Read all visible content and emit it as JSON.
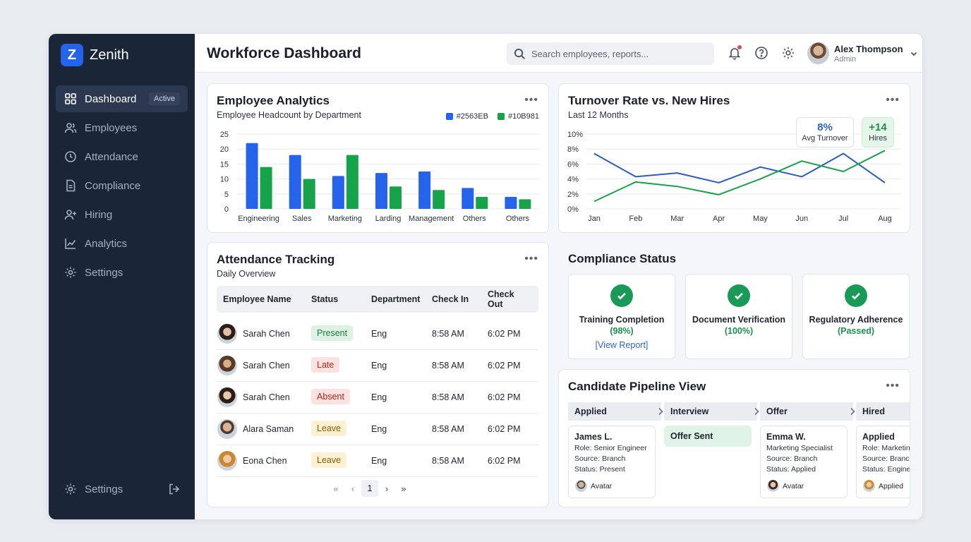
{
  "brand": {
    "name": "Zenith",
    "logo_letter": "Z"
  },
  "sidebar": {
    "items": [
      {
        "label": "Dashboard",
        "icon": "grid-icon",
        "badge": "Active"
      },
      {
        "label": "Employees",
        "icon": "users-icon"
      },
      {
        "label": "Attendance",
        "icon": "clock-icon"
      },
      {
        "label": "Compliance",
        "icon": "document-icon"
      },
      {
        "label": "Hiring",
        "icon": "user-plus-icon"
      },
      {
        "label": "Analytics",
        "icon": "trend-icon"
      },
      {
        "label": "Settings",
        "icon": "gear-icon"
      }
    ],
    "bottom": {
      "label": "Settings"
    }
  },
  "header": {
    "title": "Workforce Dashboard",
    "search_placeholder": "Search employees, reports...",
    "user": {
      "name": "Alex Thompson",
      "role": "Admin"
    }
  },
  "colors": {
    "blue": "#2563EB",
    "green": "#10B981",
    "sidebar": "#1B2538"
  },
  "employee_analytics": {
    "title": "Employee Analytics",
    "subtitle": "Employee Headcount by Department",
    "legend": [
      "#2563EB",
      "#10B981"
    ]
  },
  "turnover": {
    "title": "Turnover Rate vs. New Hires",
    "subtitle": "Last 12 Months",
    "stat_turnover_value": "8%",
    "stat_turnover_label": "Avg Turnover",
    "stat_hires_value": "+14",
    "stat_hires_label": "Hires"
  },
  "chart_data": [
    {
      "type": "bar",
      "title": "Employee Headcount by Department",
      "categories": [
        "Engineering",
        "Sales",
        "Marketing",
        "Larding",
        "Management",
        "Others",
        "Others"
      ],
      "series": [
        {
          "name": "#2563EB",
          "color": "#2563EB",
          "values": [
            22,
            18,
            11,
            12,
            12.5,
            7,
            4
          ]
        },
        {
          "name": "#10B981",
          "color": "#10B981",
          "values": [
            14,
            10,
            18,
            7.5,
            6.3,
            4,
            3.2
          ]
        }
      ],
      "yticks": [
        "0",
        "5",
        "10",
        "15",
        "20",
        "25"
      ],
      "ylim": [
        0,
        25
      ],
      "grid": true
    },
    {
      "type": "line",
      "title": "Turnover Rate vs. New Hires",
      "categories": [
        "Jan",
        "Feb",
        "Mar",
        "Apr",
        "May",
        "Jun",
        "Jul",
        "Aug"
      ],
      "series": [
        {
          "color": "#2563EB",
          "values": [
            7.4,
            4.3,
            4.8,
            3.5,
            5.6,
            4.3,
            7.4,
            3.5
          ]
        },
        {
          "color": "#10B981",
          "values": [
            1.0,
            3.6,
            3.0,
            1.9,
            4.0,
            6.4,
            5.0,
            7.8
          ]
        }
      ],
      "yticks": [
        "0%",
        "2%",
        "4%",
        "6%",
        "8%",
        "10%"
      ],
      "ylim": [
        0,
        10
      ],
      "grid": true
    }
  ],
  "attendance": {
    "title": "Attendance Tracking",
    "subtitle": "Daily Overview",
    "columns": [
      "Employee Name",
      "Status",
      "Department",
      "Check In",
      "Check\nOut"
    ],
    "rows": [
      {
        "name": "Sarah Chen",
        "status": "Present",
        "dept": "Eng",
        "in": "8:58 AM",
        "out": "6:02 PM"
      },
      {
        "name": "Sarah Chen",
        "status": "Late",
        "dept": "Eng",
        "in": "8:58 AM",
        "out": "6:02 PM"
      },
      {
        "name": "Sarah Chen",
        "status": "Absent",
        "dept": "Eng",
        "in": "8:58 AM",
        "out": "6:02 PM"
      },
      {
        "name": "Alara Saman",
        "status": "Leave",
        "dept": "Eng",
        "in": "8:58 AM",
        "out": "6:02 PM"
      },
      {
        "name": "Eona Chen",
        "status": "Leave",
        "dept": "Eng",
        "in": "8:58 AM",
        "out": "6:02 PM"
      }
    ],
    "pager": {
      "first": "«",
      "prev": "‹",
      "page": "1",
      "next": "›",
      "last": "»"
    }
  },
  "compliance": {
    "title": "Compliance Status",
    "items": [
      {
        "label": "Training Completion",
        "value": "(98%)",
        "link": "[View Report]"
      },
      {
        "label": "Document Verification",
        "value": "(100%)"
      },
      {
        "label": "Regulatory Adherence",
        "value": "(Passed)"
      }
    ]
  },
  "pipeline": {
    "title": "Candidate Pipeline View",
    "stages": [
      "Applied",
      "Interview",
      "Offer",
      "Hired"
    ],
    "cards": [
      {
        "name": "James L.",
        "role": "Role: Senior Engineer",
        "source": "Source: Branch",
        "status": "Status: Present",
        "foot": "Avatar"
      },
      {
        "tag": "Offer Sent"
      },
      {
        "name": "Emma W.",
        "role": "Marketing Specialist",
        "source": "Source: Branch",
        "status": "Status: Applied",
        "foot": "Avatar"
      },
      {
        "name": "Applied",
        "role": "Role: Marketing",
        "source": "Source: Branch",
        "status": "Status: Engineer",
        "foot": "Applied"
      }
    ]
  }
}
